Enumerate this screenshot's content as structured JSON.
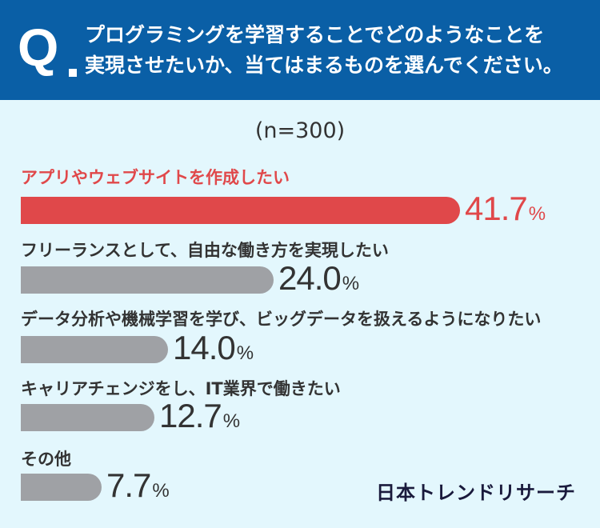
{
  "header": {
    "q_label": "Q",
    "question_line1": "プログラミングを学習することでどのようなことを",
    "question_line2": "実現させたいか、当てはまるものを選んでください。"
  },
  "chart_data": {
    "type": "bar",
    "orientation": "horizontal",
    "sample_size": "(n=300)",
    "unit": "%",
    "categories": [
      "アプリやウェブサイトを作成したい",
      "フリーランスとして、自由な働き方を実現したい",
      "データ分析や機械学習を学び、ビッグデータを扱えるようになりたい",
      "キャリアチェンジをし、IT業界で働きたい",
      "その他"
    ],
    "values": [
      41.7,
      24.0,
      14.0,
      12.7,
      7.7
    ],
    "value_labels": [
      "41.7",
      "24.0",
      "14.0",
      "12.7",
      "7.7"
    ],
    "highlight_index": 0,
    "colors": {
      "highlight": "#e0484a",
      "default": "#9fa1a5",
      "highlight_text": "#e0484a"
    }
  },
  "brand": "日本トレンドリサーチ"
}
